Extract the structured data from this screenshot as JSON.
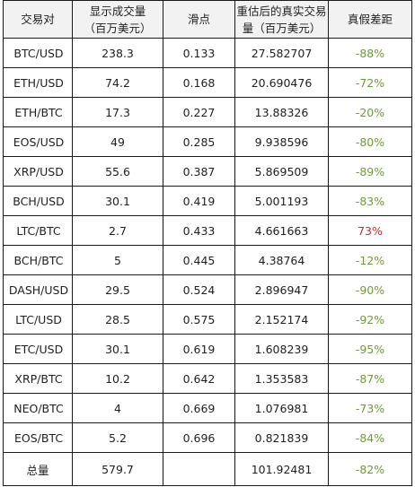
{
  "table": {
    "headers": [
      {
        "line1": "交易对",
        "line2": ""
      },
      {
        "line1": "显示成交量",
        "line2": "（百万美元）"
      },
      {
        "line1": "滑点",
        "line2": ""
      },
      {
        "line1": "重估后的真实交易",
        "line2": "量（百万美元）"
      },
      {
        "line1": "真假差距",
        "line2": ""
      }
    ],
    "rows": [
      {
        "pair": "BTC/USD",
        "displayed_volume": "238.3",
        "slippage": "0.133",
        "real_volume": "27.582707",
        "gap": "-88%"
      },
      {
        "pair": "ETH/USD",
        "displayed_volume": "74.2",
        "slippage": "0.168",
        "real_volume": "20.690476",
        "gap": "-72%"
      },
      {
        "pair": "ETH/BTC",
        "displayed_volume": "17.3",
        "slippage": "0.227",
        "real_volume": "13.88326",
        "gap": "-20%"
      },
      {
        "pair": "EOS/USD",
        "displayed_volume": "49",
        "slippage": "0.285",
        "real_volume": "9.938596",
        "gap": "-80%"
      },
      {
        "pair": "XRP/USD",
        "displayed_volume": "55.6",
        "slippage": "0.387",
        "real_volume": "5.869509",
        "gap": "-89%"
      },
      {
        "pair": "BCH/USD",
        "displayed_volume": "30.1",
        "slippage": "0.419",
        "real_volume": "5.001193",
        "gap": "-83%"
      },
      {
        "pair": "LTC/BTC",
        "displayed_volume": "2.7",
        "slippage": "0.433",
        "real_volume": "4.661663",
        "gap": "73%"
      },
      {
        "pair": "BCH/BTC",
        "displayed_volume": "5",
        "slippage": "0.445",
        "real_volume": "4.38764",
        "gap": "-12%"
      },
      {
        "pair": "DASH/USD",
        "displayed_volume": "29.5",
        "slippage": "0.524",
        "real_volume": "2.896947",
        "gap": "-90%"
      },
      {
        "pair": "LTC/USD",
        "displayed_volume": "28.5",
        "slippage": "0.575",
        "real_volume": "2.152174",
        "gap": "-92%"
      },
      {
        "pair": "ETC/USD",
        "displayed_volume": "30.1",
        "slippage": "0.619",
        "real_volume": "1.608239",
        "gap": "-95%"
      },
      {
        "pair": "XRP/BTC",
        "displayed_volume": "10.2",
        "slippage": "0.642",
        "real_volume": "1.353583",
        "gap": "-87%"
      },
      {
        "pair": "NEO/BTC",
        "displayed_volume": "4",
        "slippage": "0.669",
        "real_volume": "1.076981",
        "gap": "-73%"
      },
      {
        "pair": "EOS/BTC",
        "displayed_volume": "5.2",
        "slippage": "0.696",
        "real_volume": "0.821839",
        "gap": "-84%"
      }
    ],
    "total": {
      "label": "总量",
      "displayed_volume": "579.7",
      "slippage": "",
      "real_volume": "101.92481",
      "gap": "-82%"
    }
  },
  "colors": {
    "negative_gap": "#6e9a3a",
    "positive_gap": "#e0211b",
    "header_background": "#f2f2f2",
    "border": "#1a1a1a"
  }
}
